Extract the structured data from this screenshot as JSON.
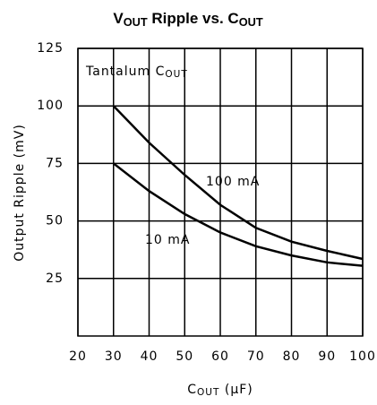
{
  "chart_data": {
    "type": "line",
    "title": "VOUT Ripple vs. COUT",
    "x_label": "COUT (μF)",
    "y_label": "Output Ripple (mV)",
    "annotations": [
      "Tantalum COUT",
      "100 mA",
      "10 mA"
    ],
    "x": [
      30,
      40,
      50,
      60,
      70,
      80,
      90,
      100
    ],
    "series": [
      {
        "name": "100 mA",
        "color": "#000000",
        "values": [
          100,
          84,
          70,
          57,
          47,
          41,
          37,
          33.5
        ]
      },
      {
        "name": "10 mA",
        "color": "#000000",
        "values": [
          75,
          63,
          53,
          45,
          39,
          35,
          32,
          30.5
        ]
      }
    ],
    "xlim": [
      20,
      100
    ],
    "xticks": [
      20,
      30,
      40,
      50,
      60,
      70,
      80,
      90,
      100
    ],
    "ylim": [
      0,
      125
    ],
    "yticks": [
      25,
      50,
      75,
      100,
      125
    ],
    "grid": true
  }
}
